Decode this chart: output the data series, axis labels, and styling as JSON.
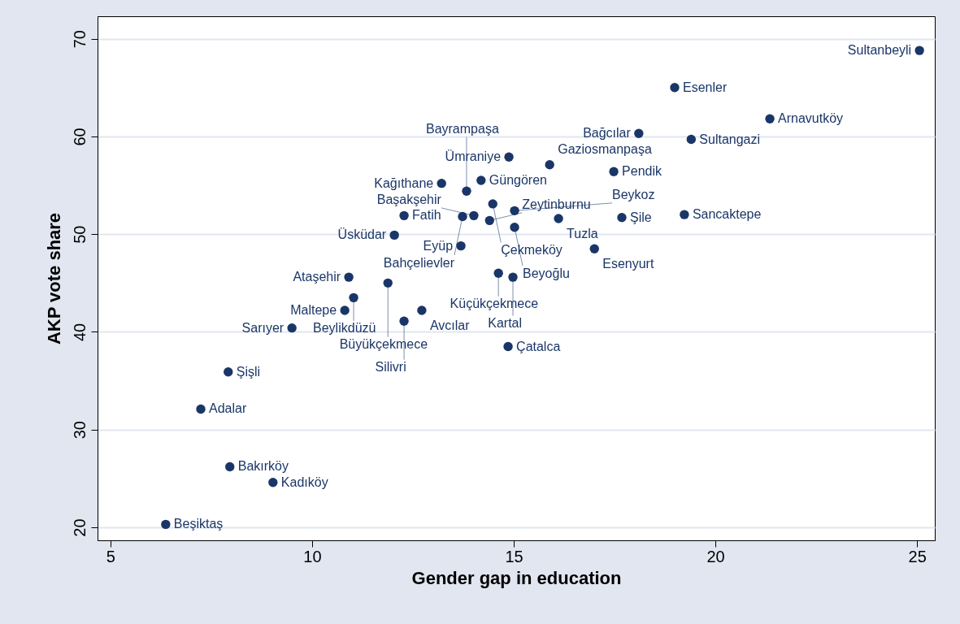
{
  "chart_data": {
    "type": "scatter",
    "xlabel": "Gender gap in education",
    "ylabel": "AKP vote share",
    "xlim": [
      4.68,
      25.44
    ],
    "ylim": [
      18.67,
      72.3
    ],
    "xticks": [
      5,
      10,
      15,
      20,
      25
    ],
    "yticks": [
      20,
      30,
      40,
      50,
      60,
      70
    ],
    "grid": "y",
    "marker": "circle",
    "series": [
      {
        "color": "#1a3668",
        "x": [
          25.06,
          18.99,
          21.35,
          18.1,
          19.4,
          14.88,
          15.89,
          17.48,
          14.19,
          13.21,
          13.83,
          14.48,
          12.28,
          13.73,
          14.01,
          14.4,
          15.02,
          16.11,
          15.02,
          17.68,
          19.23,
          12.04,
          13.69,
          17.0,
          10.91,
          11.88,
          14.62,
          14.98,
          11.03,
          10.81,
          12.72,
          12.28,
          14.86,
          9.5,
          7.92,
          7.24,
          7.96,
          9.03,
          6.37
        ],
        "values": [
          68.8,
          65.0,
          61.8,
          60.3,
          59.7,
          57.9,
          57.1,
          56.4,
          55.5,
          55.2,
          54.4,
          53.1,
          51.9,
          51.8,
          51.9,
          51.4,
          52.4,
          51.6,
          50.7,
          51.7,
          52.0,
          49.9,
          48.8,
          48.5,
          45.6,
          45.0,
          46.0,
          45.6,
          43.5,
          42.2,
          42.2,
          41.1,
          38.5,
          40.4,
          35.9,
          32.1,
          26.2,
          24.6,
          20.3
        ]
      }
    ],
    "annotations": [
      {
        "text": "Sultanbeyli",
        "x": 25.06,
        "y": 68.8
      },
      {
        "text": "Esenler",
        "x": 18.99,
        "y": 65.0
      },
      {
        "text": "Arnavutköy",
        "x": 21.35,
        "y": 61.8
      },
      {
        "text": "Bağcılar",
        "x": 18.1,
        "y": 60.3
      },
      {
        "text": "Sultangazi",
        "x": 19.4,
        "y": 59.7
      },
      {
        "text": "Ümraniye",
        "x": 14.88,
        "y": 57.9
      },
      {
        "text": "Gaziosmanpaşa",
        "x": 15.89,
        "y": 57.1
      },
      {
        "text": "Pendik",
        "x": 17.48,
        "y": 56.4
      },
      {
        "text": "Güngören",
        "x": 14.19,
        "y": 55.5
      },
      {
        "text": "Kağıthane",
        "x": 13.21,
        "y": 55.2
      },
      {
        "text": "Bayrampaşa",
        "x": 13.83,
        "y": 54.4
      },
      {
        "text": "Çekmeköy",
        "x": 14.48,
        "y": 53.1
      },
      {
        "text": "Fatih",
        "x": 12.28,
        "y": 51.9
      },
      {
        "text": "Bahçelievler",
        "x": 13.73,
        "y": 51.8
      },
      {
        "text": "Başakşehir",
        "x": 14.01,
        "y": 51.9
      },
      {
        "text": "Zeytinburnu",
        "x": 14.4,
        "y": 51.4
      },
      {
        "text": "Beykoz",
        "x": 15.02,
        "y": 52.4
      },
      {
        "text": "Tuzla",
        "x": 16.11,
        "y": 51.6
      },
      {
        "text": "Beyoğlu",
        "x": 15.02,
        "y": 50.7
      },
      {
        "text": "Şile",
        "x": 17.68,
        "y": 51.7
      },
      {
        "text": "Sancaktepe",
        "x": 19.23,
        "y": 52.0
      },
      {
        "text": "Üsküdar",
        "x": 12.04,
        "y": 49.9
      },
      {
        "text": "Eyüp",
        "x": 13.69,
        "y": 48.8
      },
      {
        "text": "Esenyurt",
        "x": 17.0,
        "y": 48.5
      },
      {
        "text": "Ataşehir",
        "x": 10.91,
        "y": 45.6
      },
      {
        "text": "Büyükçekmece",
        "x": 11.88,
        "y": 45.0
      },
      {
        "text": "Küçükçekmece",
        "x": 14.62,
        "y": 46.0
      },
      {
        "text": "Kartal",
        "x": 14.98,
        "y": 45.6
      },
      {
        "text": "Beylikdüzü",
        "x": 11.03,
        "y": 43.5
      },
      {
        "text": "Maltepe",
        "x": 10.81,
        "y": 42.2
      },
      {
        "text": "Avcılar",
        "x": 12.72,
        "y": 42.2
      },
      {
        "text": "Silivri",
        "x": 12.28,
        "y": 41.1
      },
      {
        "text": "Çatalca",
        "x": 14.86,
        "y": 38.5
      },
      {
        "text": "Sarıyer",
        "x": 9.5,
        "y": 40.4
      },
      {
        "text": "Şişli",
        "x": 7.92,
        "y": 35.9
      },
      {
        "text": "Adalar",
        "x": 7.24,
        "y": 32.1
      },
      {
        "text": "Bakırköy",
        "x": 7.96,
        "y": 26.2
      },
      {
        "text": "Kadıköy",
        "x": 9.03,
        "y": 24.6
      },
      {
        "text": "Beşiktaş",
        "x": 6.37,
        "y": 20.3
      }
    ]
  }
}
